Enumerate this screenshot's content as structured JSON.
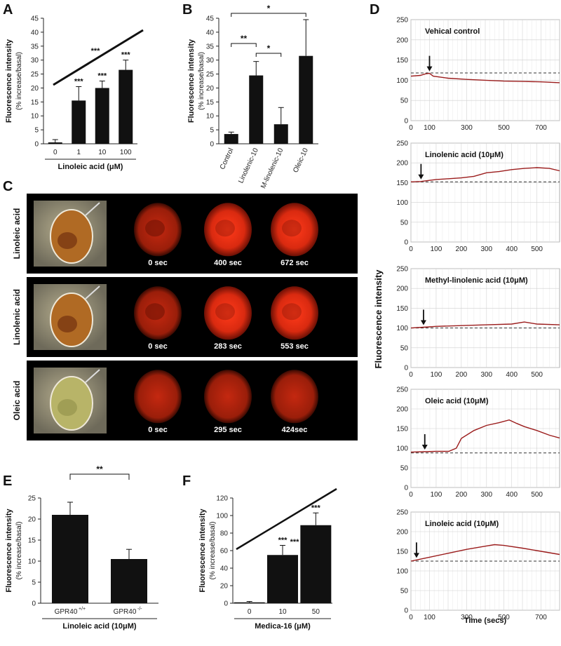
{
  "panels": {
    "A": "A",
    "B": "B",
    "C": "C",
    "D": "D",
    "E": "E",
    "F": "F"
  },
  "chart_data": [
    {
      "id": "A",
      "type": "bar",
      "ylabel": "Fluorescence intensity",
      "ylabel2": "(% increase/basal)",
      "xlabel": "Linoleic acid (μM)",
      "categories": [
        "0",
        "1",
        "10",
        "100"
      ],
      "values": [
        0.5,
        15.5,
        20,
        26.5
      ],
      "errors": [
        1.0,
        5.0,
        2.5,
        3.5
      ],
      "stars": [
        "",
        "***",
        "***",
        "***"
      ],
      "trend_label": "***",
      "ylim": [
        0,
        45
      ],
      "yticks": [
        0,
        5,
        10,
        15,
        20,
        25,
        30,
        35,
        40,
        45
      ]
    },
    {
      "id": "B",
      "type": "bar",
      "ylabel": "Fluorescence intensity",
      "ylabel2": "(% increase/basal)",
      "categories": [
        "Control",
        "Linolenic-10",
        "M-linolenic-10",
        "Oleic-10"
      ],
      "values": [
        3.5,
        24.5,
        7,
        31.5
      ],
      "errors": [
        0.7,
        5.0,
        6.0,
        13.0
      ],
      "brackets": [
        {
          "from": 0,
          "to": 1,
          "label": "**"
        },
        {
          "from": 1,
          "to": 2,
          "label": "*"
        },
        {
          "from": 0,
          "to": 3,
          "label": "*"
        }
      ],
      "ylim": [
        0,
        45
      ],
      "yticks": [
        0,
        5,
        10,
        15,
        20,
        25,
        30,
        35,
        40,
        45
      ]
    },
    {
      "id": "E",
      "type": "bar",
      "ylabel": "Fluorescence intensity",
      "ylabel2": "(% increase/basal)",
      "xlabel": "Linoleic acid (10μM)",
      "categories": [
        "GPR40+/+",
        "GPR40-/-"
      ],
      "category_base": [
        "GPR40",
        "GPR40"
      ],
      "category_sup": [
        "+/+",
        "-/-"
      ],
      "values": [
        21,
        10.5
      ],
      "errors": [
        3.0,
        2.3
      ],
      "bracket_label": "**",
      "ylim": [
        0,
        25
      ],
      "yticks": [
        0,
        5,
        10,
        15,
        20,
        25
      ]
    },
    {
      "id": "F",
      "type": "bar",
      "ylabel": "Fluorescence intensity",
      "ylabel2": "(% increase/basal)",
      "xlabel": "Medica-16 (μM)",
      "categories": [
        "0",
        "10",
        "50"
      ],
      "values": [
        1,
        55,
        89
      ],
      "errors": [
        1.0,
        11.0,
        14.0
      ],
      "stars": [
        "",
        "***",
        "***"
      ],
      "trend_label": "***",
      "ylim": [
        0,
        120
      ],
      "yticks": [
        0,
        20,
        40,
        60,
        80,
        100,
        120
      ]
    },
    {
      "id": "D",
      "type": "line",
      "ylabel": "Fluorescence intensity",
      "xlabel": "Time (secs)",
      "line_color": "#9b1c1c",
      "series": [
        {
          "title": "Vehical control",
          "xmax": 800,
          "xticks": [
            0,
            100,
            300,
            500,
            700
          ],
          "ylim": [
            0,
            250
          ],
          "yticks": [
            0,
            50,
            100,
            150,
            200,
            250
          ],
          "baseline": 118,
          "arrow_x": 100,
          "points": [
            [
              0,
              110
            ],
            [
              50,
              112
            ],
            [
              80,
              116
            ],
            [
              100,
              117
            ],
            [
              120,
              110
            ],
            [
              200,
              105
            ],
            [
              300,
              102
            ],
            [
              400,
              100
            ],
            [
              500,
              98
            ],
            [
              600,
              97
            ],
            [
              700,
              96
            ],
            [
              800,
              94
            ]
          ]
        },
        {
          "title": "Linolenic acid (10μM)",
          "xmax": 590,
          "xticks": [
            0,
            100,
            200,
            300,
            400,
            500
          ],
          "ylim": [
            0,
            250
          ],
          "yticks": [
            0,
            50,
            100,
            150,
            200,
            250
          ],
          "baseline": 152,
          "arrow_x": 40,
          "points": [
            [
              0,
              152
            ],
            [
              40,
              153
            ],
            [
              100,
              158
            ],
            [
              150,
              160
            ],
            [
              200,
              162
            ],
            [
              250,
              166
            ],
            [
              300,
              175
            ],
            [
              350,
              178
            ],
            [
              400,
              183
            ],
            [
              450,
              186
            ],
            [
              500,
              188
            ],
            [
              550,
              186
            ],
            [
              590,
              180
            ]
          ]
        },
        {
          "title": "Methyl-linolenic acid (10μM)",
          "xmax": 590,
          "xticks": [
            0,
            100,
            200,
            300,
            400,
            500
          ],
          "ylim": [
            0,
            250
          ],
          "yticks": [
            0,
            50,
            100,
            150,
            200,
            250
          ],
          "baseline": 100,
          "arrow_x": 50,
          "points": [
            [
              0,
              100
            ],
            [
              50,
              102
            ],
            [
              100,
              104
            ],
            [
              200,
              106
            ],
            [
              300,
              108
            ],
            [
              400,
              110
            ],
            [
              450,
              115
            ],
            [
              500,
              110
            ],
            [
              590,
              108
            ]
          ]
        },
        {
          "title": "Oleic acid (10μM)",
          "xmax": 590,
          "xticks": [
            0,
            100,
            200,
            300,
            400,
            500
          ],
          "ylim": [
            0,
            250
          ],
          "yticks": [
            0,
            50,
            100,
            150,
            200,
            250
          ],
          "baseline": 88,
          "arrow_x": 55,
          "points": [
            [
              0,
              90
            ],
            [
              50,
              91
            ],
            [
              100,
              92
            ],
            [
              150,
              92
            ],
            [
              180,
              100
            ],
            [
              200,
              125
            ],
            [
              250,
              145
            ],
            [
              300,
              158
            ],
            [
              350,
              165
            ],
            [
              390,
              172
            ],
            [
              420,
              163
            ],
            [
              450,
              155
            ],
            [
              500,
              145
            ],
            [
              550,
              133
            ],
            [
              590,
              126
            ]
          ]
        },
        {
          "title": "Linoleic acid (10μM)",
          "xmax": 800,
          "xticks": [
            0,
            100,
            300,
            500,
            700
          ],
          "ylim": [
            0,
            250
          ],
          "yticks": [
            0,
            50,
            100,
            150,
            200,
            250
          ],
          "baseline": 125,
          "arrow_x": 30,
          "points": [
            [
              0,
              125
            ],
            [
              30,
              128
            ],
            [
              100,
              135
            ],
            [
              200,
              145
            ],
            [
              300,
              155
            ],
            [
              400,
              163
            ],
            [
              450,
              167
            ],
            [
              500,
              165
            ],
            [
              600,
              158
            ],
            [
              700,
              150
            ],
            [
              800,
              142
            ]
          ]
        }
      ]
    }
  ],
  "panel_c": {
    "rows": [
      {
        "label": "Linoleic acid",
        "times": [
          "0 sec",
          "400 sec",
          "672 sec"
        ]
      },
      {
        "label": "Linolenic acid",
        "times": [
          "0 sec",
          "283 sec",
          "553 sec"
        ]
      },
      {
        "label": "Oleic acid",
        "times": [
          "0 sec",
          "295 sec",
          "424sec"
        ]
      }
    ]
  }
}
